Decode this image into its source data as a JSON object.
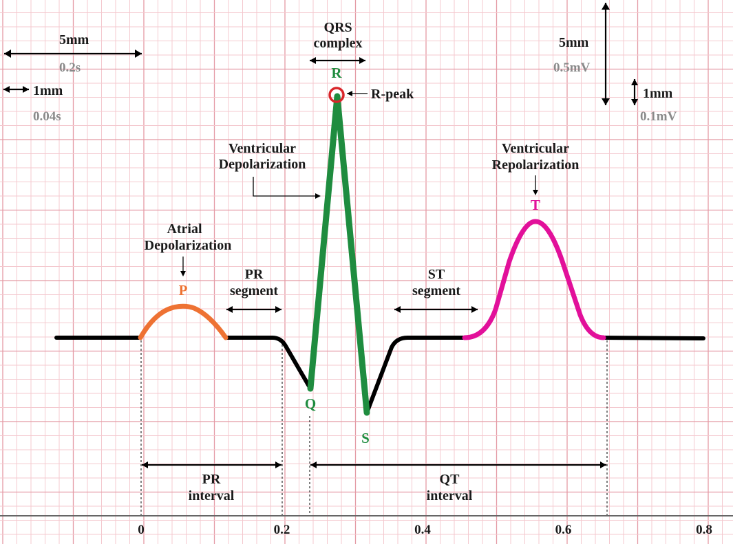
{
  "colors": {
    "grid_minor": "#f4c9cf",
    "grid_major": "#e49aa5",
    "baseline": "#000000",
    "p_wave": "#ee7233",
    "qrs": "#1f8c3f",
    "t_wave": "#e2109a",
    "r_marker": "#d9252a",
    "secondary_text": "#8a8a8a"
  },
  "scale": {
    "time_major": {
      "label": "5mm",
      "value": "0.2s"
    },
    "time_minor": {
      "label": "1mm",
      "value": "0.04s"
    },
    "volt_major": {
      "label": "5mm",
      "value": "0.5mV"
    },
    "volt_minor": {
      "label": "1mm",
      "value": "0.1mV"
    }
  },
  "labels": {
    "qrs_complex_1": "QRS",
    "qrs_complex_2": "complex",
    "r_peak": "R-peak",
    "ventricular_depol_1": "Ventricular",
    "ventricular_depol_2": "Depolarization",
    "ventricular_repol_1": "Ventricular",
    "ventricular_repol_2": "Repolarization",
    "atrial_depol_1": "Atrial",
    "atrial_depol_2": "Depolarization",
    "pr_segment_1": "PR",
    "pr_segment_2": "segment",
    "st_segment_1": "ST",
    "st_segment_2": "segment",
    "pr_interval_1": "PR",
    "pr_interval_2": "interval",
    "qt_interval_1": "QT",
    "qt_interval_2": "interval"
  },
  "waves": {
    "p": "P",
    "q": "Q",
    "r": "R",
    "s": "S",
    "t": "T"
  },
  "axis": {
    "ticks": [
      "0",
      "0.2",
      "0.4",
      "0.6",
      "0.8"
    ]
  }
}
